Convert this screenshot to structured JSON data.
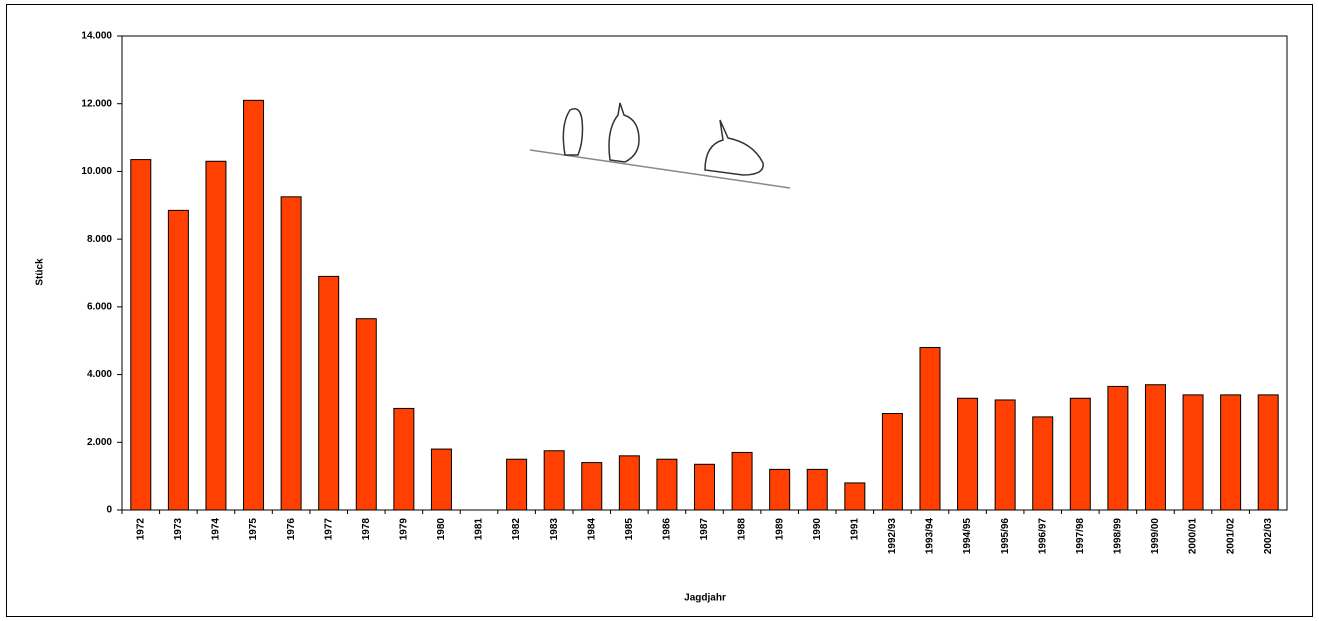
{
  "chart_data": {
    "type": "bar",
    "y_label": "Stück",
    "x_label": "Jagdjahr",
    "categories": [
      "1972",
      "1973",
      "1974",
      "1975",
      "1976",
      "1977",
      "1978",
      "1979",
      "1980",
      "1981",
      "1982",
      "1983",
      "1984",
      "1985",
      "1986",
      "1987",
      "1988",
      "1989",
      "1990",
      "1991",
      "1992/93",
      "1993/94",
      "1994/95",
      "1995/96",
      "1996/97",
      "1997/98",
      "1998/99",
      "1999/00",
      "2000/01",
      "2001/02",
      "2002/03"
    ],
    "values": [
      10350,
      8850,
      10300,
      12100,
      9250,
      6900,
      5650,
      3000,
      1800,
      null,
      1500,
      1750,
      1400,
      1600,
      1500,
      1350,
      1700,
      1200,
      1200,
      800,
      2850,
      4800,
      3300,
      3250,
      2750,
      3300,
      3650,
      3700,
      3400,
      3400,
      3400
    ],
    "color": "#ff4000",
    "ylim": [
      0,
      14000
    ],
    "yticks": [
      0,
      {
        "value": 2000,
        "label": "2.000"
      },
      {
        "value": 4000,
        "label": "4.000"
      },
      {
        "value": 6000,
        "label": "6.000"
      },
      {
        "value": 8000,
        "label": "8.000"
      },
      {
        "value": 10000,
        "label": "10.000"
      },
      {
        "value": 12000,
        "label": "12.000"
      },
      {
        "value": 14000,
        "label": "14.000"
      }
    ],
    "grid": false
  }
}
